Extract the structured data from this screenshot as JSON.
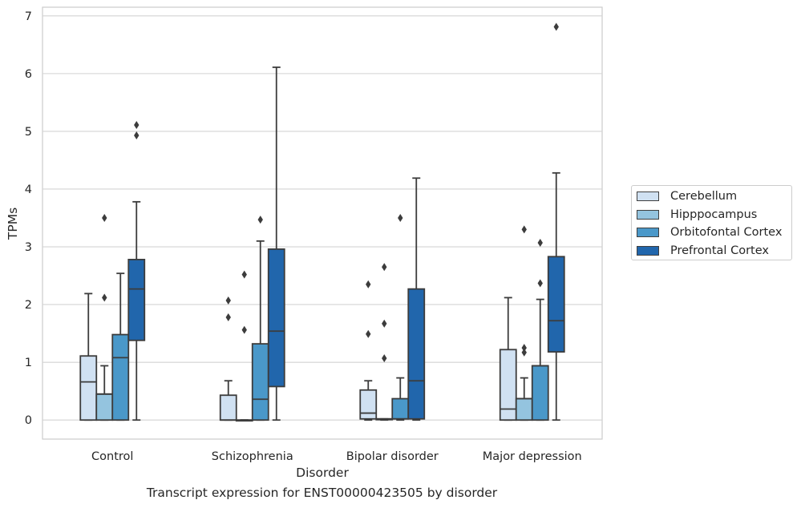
{
  "caption": "Transcript expression for ENST00000423505 by disorder",
  "chart_data": {
    "type": "box",
    "xlabel": "Disorder",
    "ylabel": "TPMs",
    "ylim": [
      -0.33,
      7.15
    ],
    "yticks": [
      0,
      1,
      2,
      3,
      4,
      5,
      6,
      7
    ],
    "grid": "horizontal",
    "legend_position": "right",
    "categories": [
      "Control",
      "Schizophrenia",
      "Bipolar disorder",
      "Major depression"
    ],
    "series": [
      {
        "name": "Cerebellum",
        "color": "#d0e1f2",
        "boxes": [
          {
            "min": 0,
            "q1": 0,
            "median": 0.66,
            "q3": 1.11,
            "max": 2.19,
            "outliers": []
          },
          {
            "min": 0,
            "q1": 0,
            "median": 0,
            "q3": 0.43,
            "max": 0.68,
            "outliers": [
              2.07,
              1.78
            ]
          },
          {
            "min": 0,
            "q1": 0.02,
            "median": 0.12,
            "q3": 0.52,
            "max": 0.68,
            "outliers": [
              2.35,
              1.49
            ]
          },
          {
            "min": 0,
            "q1": 0,
            "median": 0.19,
            "q3": 1.22,
            "max": 2.12,
            "outliers": []
          }
        ]
      },
      {
        "name": "Hipppocampus",
        "color": "#94c4df",
        "boxes": [
          {
            "min": 0,
            "q1": 0,
            "median": 0.45,
            "q3": 0.45,
            "max": 0.94,
            "outliers": [
              3.5,
              2.12
            ]
          },
          {
            "min": 0,
            "q1": 0,
            "median": 0,
            "q3": 0,
            "max": 0,
            "outliers": [
              2.52,
              1.56
            ]
          },
          {
            "min": 0,
            "q1": 0.02,
            "median": 0.02,
            "q3": 0.02,
            "max": 0.02,
            "outliers": [
              2.65,
              1.67,
              1.07
            ]
          },
          {
            "min": 0,
            "q1": 0,
            "median": 0.37,
            "q3": 0.37,
            "max": 0.73,
            "outliers": [
              3.3,
              1.25,
              1.17
            ]
          }
        ]
      },
      {
        "name": "Orbitofontal Cortex",
        "color": "#4a98c9",
        "boxes": [
          {
            "min": 0,
            "q1": 0,
            "median": 1.08,
            "q3": 1.48,
            "max": 2.54,
            "outliers": []
          },
          {
            "min": 0,
            "q1": 0,
            "median": 0.36,
            "q3": 1.32,
            "max": 3.1,
            "outliers": [
              3.47
            ]
          },
          {
            "min": 0,
            "q1": 0.02,
            "median": 0.02,
            "q3": 0.37,
            "max": 0.73,
            "outliers": [
              3.5
            ]
          },
          {
            "min": 0,
            "q1": 0,
            "median": 0.94,
            "q3": 0.94,
            "max": 2.09,
            "outliers": [
              3.07,
              2.37
            ]
          }
        ]
      },
      {
        "name": "Prefrontal Cortex",
        "color": "#2166ac",
        "boxes": [
          {
            "min": 0,
            "q1": 1.38,
            "median": 2.27,
            "q3": 2.78,
            "max": 3.78,
            "outliers": [
              5.11,
              4.93
            ]
          },
          {
            "min": 0,
            "q1": 0.58,
            "median": 1.54,
            "q3": 2.96,
            "max": 6.11,
            "outliers": []
          },
          {
            "min": 0,
            "q1": 0.02,
            "median": 0.68,
            "q3": 2.27,
            "max": 4.19,
            "outliers": []
          },
          {
            "min": 0,
            "q1": 1.18,
            "median": 1.72,
            "q3": 2.83,
            "max": 4.28,
            "outliers": [
              6.81
            ]
          }
        ]
      }
    ]
  }
}
